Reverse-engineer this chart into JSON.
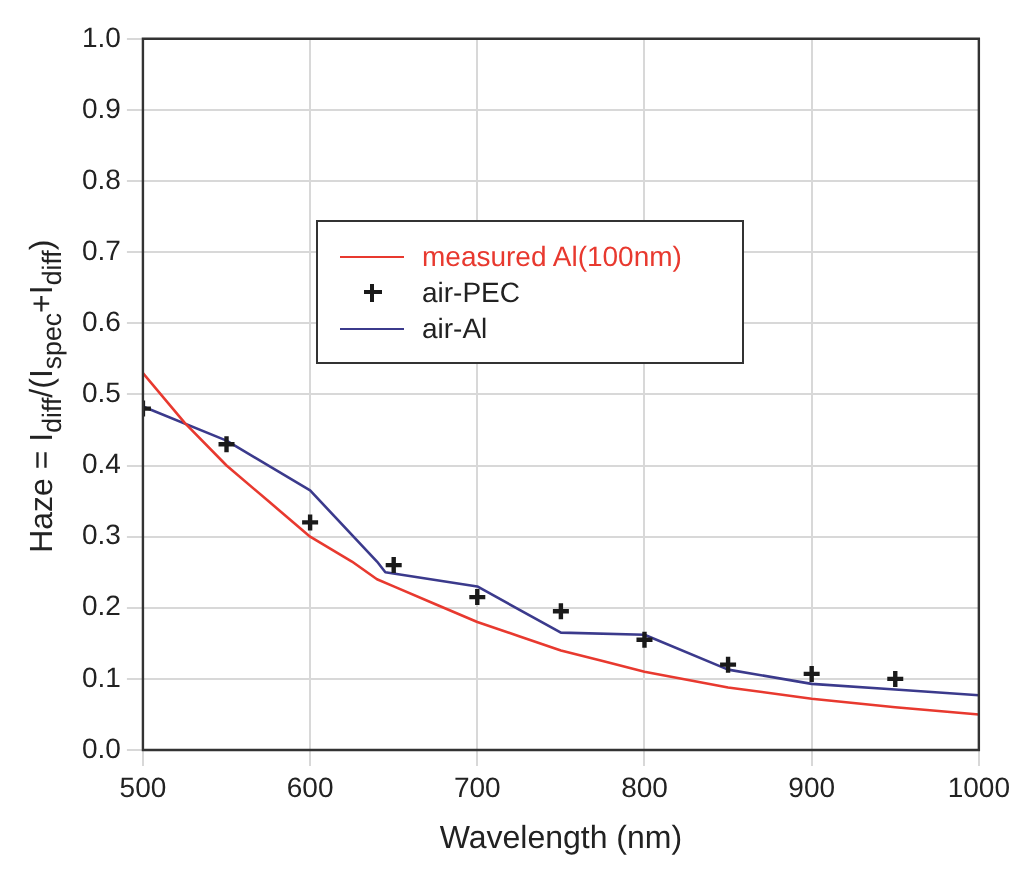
{
  "chart_data": {
    "type": "line",
    "xlabel": "Wavelength (nm)",
    "ylabel": "Haze = I$_{diff}$/(I$_{spec}$+I$_{diff}$)",
    "xlim": [
      500,
      1000
    ],
    "xticks": [
      500,
      600,
      700,
      800,
      900,
      1000
    ],
    "ylim": [
      0,
      1
    ],
    "yticks": [
      {
        "value": 0,
        "label": "0.0"
      },
      0.1,
      0.2,
      0.3,
      0.4,
      0.5,
      0.6,
      0.7,
      0.8,
      0.9,
      {
        "value": 1,
        "label": "1.0"
      }
    ],
    "grid": true,
    "legend": "top",
    "series": [
      {
        "name": "measured Al(100nm)",
        "color": "#e8392f",
        "marker": "none",
        "x": [
          500,
          525,
          550,
          575,
          600,
          625,
          640,
          650,
          675,
          700,
          725,
          750,
          775,
          800,
          850,
          900,
          950,
          1000
        ],
        "values": [
          0.53,
          0.46,
          0.4,
          0.35,
          0.3,
          0.265,
          0.24,
          0.23,
          0.205,
          0.18,
          0.16,
          0.14,
          0.125,
          0.11,
          0.088,
          0.072,
          0.06,
          0.05
        ]
      },
      {
        "name": "air-PEC",
        "color": "#1a1a1a",
        "type": "scatter",
        "marker": "cross",
        "x": [
          500,
          550,
          600,
          650,
          700,
          750,
          800,
          850,
          900,
          950
        ],
        "values": [
          0.48,
          0.43,
          0.32,
          0.26,
          0.215,
          0.195,
          0.155,
          0.12,
          0.107,
          0.1
        ]
      },
      {
        "name": "air-Al",
        "color": "#3b3a8c",
        "marker": "none",
        "x": [
          500,
          550,
          600,
          640,
          645,
          700,
          750,
          800,
          850,
          900,
          950,
          1000
        ],
        "values": [
          0.483,
          0.435,
          0.365,
          0.265,
          0.25,
          0.23,
          0.165,
          0.162,
          0.113,
          0.093,
          0.085,
          0.077
        ]
      }
    ]
  }
}
